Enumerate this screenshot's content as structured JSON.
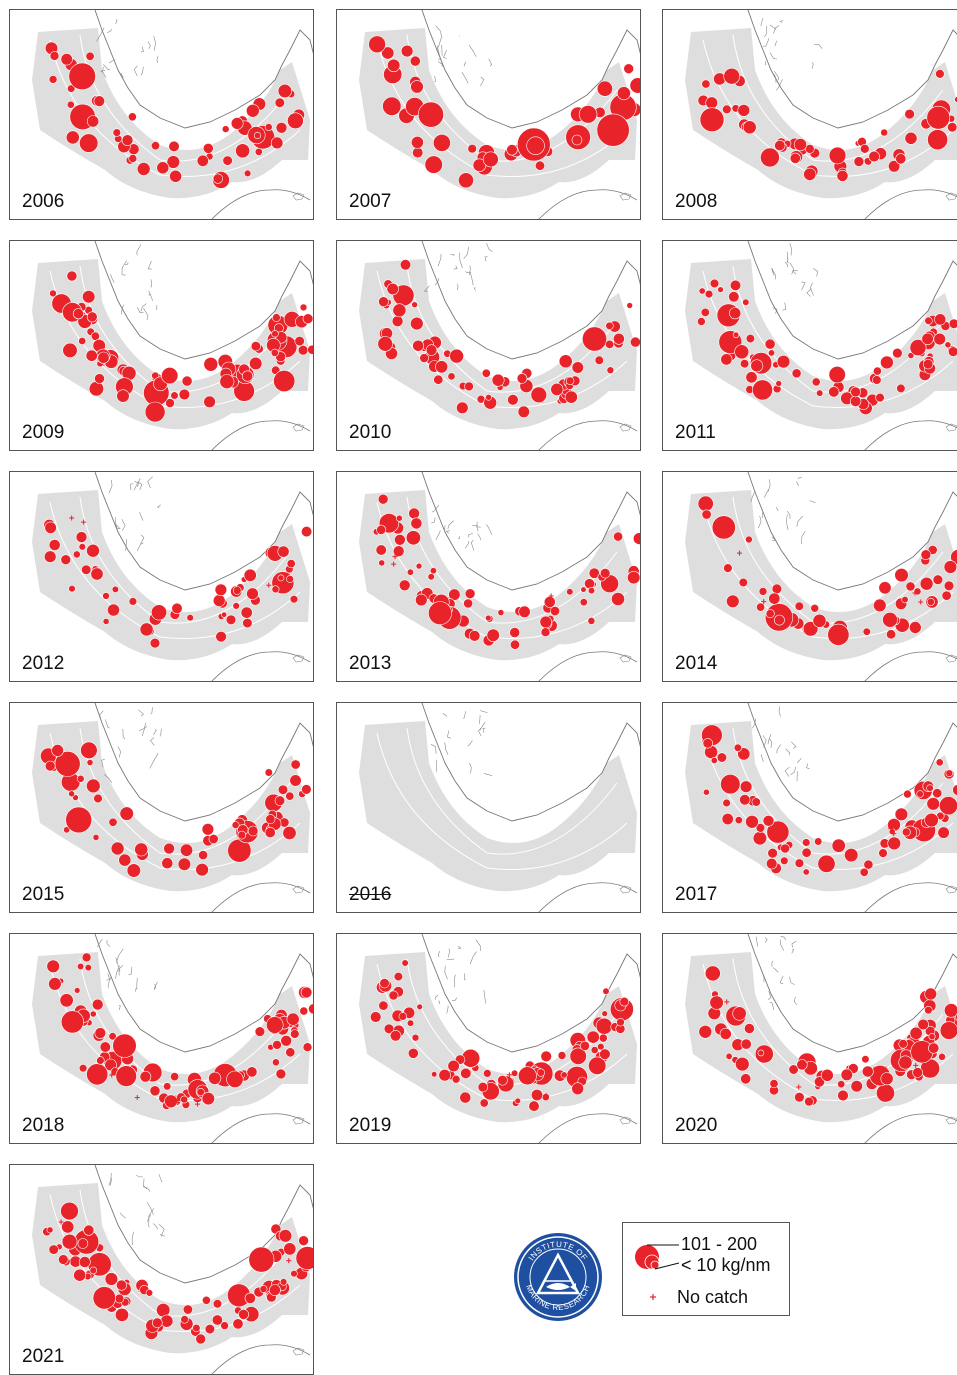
{
  "panels": [
    {
      "year": "2006",
      "struck": false,
      "seed": 6,
      "count": 55,
      "scale": 1.05,
      "empty": false,
      "nocatch": 0
    },
    {
      "year": "2007",
      "struck": false,
      "seed": 7,
      "count": 45,
      "scale": 1.35,
      "empty": false,
      "nocatch": 0
    },
    {
      "year": "2008",
      "struck": false,
      "seed": 8,
      "count": 55,
      "scale": 0.95,
      "empty": false,
      "nocatch": 0
    },
    {
      "year": "2009",
      "struck": false,
      "seed": 9,
      "count": 80,
      "scale": 1.05,
      "empty": false,
      "nocatch": 0
    },
    {
      "year": "2010",
      "struck": false,
      "seed": 10,
      "count": 75,
      "scale": 0.95,
      "empty": false,
      "nocatch": 0
    },
    {
      "year": "2011",
      "struck": false,
      "seed": 11,
      "count": 75,
      "scale": 0.95,
      "empty": false,
      "nocatch": 0
    },
    {
      "year": "2012",
      "struck": false,
      "seed": 12,
      "count": 55,
      "scale": 0.9,
      "empty": false,
      "nocatch": 3
    },
    {
      "year": "2013",
      "struck": false,
      "seed": 13,
      "count": 70,
      "scale": 0.9,
      "empty": false,
      "nocatch": 4
    },
    {
      "year": "2014",
      "struck": false,
      "seed": 14,
      "count": 50,
      "scale": 1.1,
      "empty": false,
      "nocatch": 5
    },
    {
      "year": "2015",
      "struck": false,
      "seed": 15,
      "count": 60,
      "scale": 1.0,
      "empty": false,
      "nocatch": 0
    },
    {
      "year": "2016",
      "struck": true,
      "seed": 16,
      "count": 0,
      "scale": 1.0,
      "empty": true,
      "nocatch": 0
    },
    {
      "year": "2017",
      "struck": false,
      "seed": 17,
      "count": 70,
      "scale": 1.0,
      "empty": false,
      "nocatch": 3
    },
    {
      "year": "2018",
      "struck": false,
      "seed": 18,
      "count": 85,
      "scale": 0.95,
      "empty": false,
      "nocatch": 4
    },
    {
      "year": "2019",
      "struck": false,
      "seed": 19,
      "count": 85,
      "scale": 0.9,
      "empty": false,
      "nocatch": 3
    },
    {
      "year": "2020",
      "struck": false,
      "seed": 20,
      "count": 85,
      "scale": 1.0,
      "empty": false,
      "nocatch": 4
    },
    {
      "year": "2021",
      "struck": false,
      "seed": 21,
      "count": 85,
      "scale": 1.0,
      "empty": false,
      "nocatch": 3
    }
  ],
  "legend": {
    "size_max_label": "101 - 200",
    "size_min_label": "< 10 kg/nm",
    "no_catch_label": "No catch"
  },
  "logo": {
    "top_text": "INSTITUTE OF",
    "bottom_text": "MARINE RESEARCH"
  },
  "colors": {
    "catch": "#e8232a",
    "sea_area": "#dedede",
    "coast": "#777777",
    "logo_blue": "#1f4fa0"
  }
}
